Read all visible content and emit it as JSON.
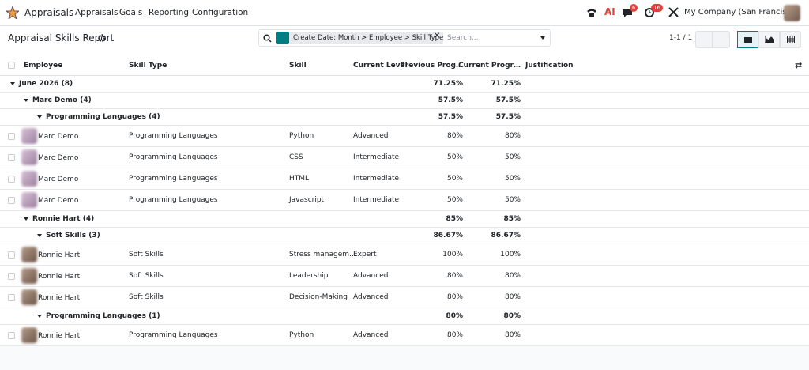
{
  "navbar": {
    "app": "Appraisals",
    "menu": [
      "Appraisals",
      "Goals",
      "Reporting",
      "Configuration"
    ],
    "badges": [
      "6",
      "16"
    ],
    "company": "My Company (San Francisco)"
  },
  "control_panel": {
    "title": "Appraisal Skills Report",
    "facet": "Create Date: Month > Employee > Skill Type",
    "search_placeholder": "Search...",
    "pager": "1-1 / 1"
  },
  "table": {
    "columns": [
      "Employee",
      "Skill Type",
      "Skill",
      "Current Level",
      "Previous Prog…",
      "Current Progr…",
      "Justification"
    ],
    "groups": [
      {
        "label": "June 2026 (8)",
        "previous": "71.25%",
        "current": "71.25%",
        "groups": [
          {
            "label": "Marc Demo (4)",
            "previous": "57.5%",
            "current": "57.5%",
            "groups": [
              {
                "label": "Programming Languages (4)",
                "previous": "57.5%",
                "current": "57.5%",
                "records": [
                  {
                    "employee": "Marc Demo",
                    "skill_type": "Programming Languages",
                    "skill": "Python",
                    "level": "Advanced",
                    "previous": "80%",
                    "current": "80%"
                  },
                  {
                    "employee": "Marc Demo",
                    "skill_type": "Programming Languages",
                    "skill": "CSS",
                    "level": "Intermediate",
                    "previous": "50%",
                    "current": "50%"
                  },
                  {
                    "employee": "Marc Demo",
                    "skill_type": "Programming Languages",
                    "skill": "HTML",
                    "level": "Intermediate",
                    "previous": "50%",
                    "current": "50%"
                  },
                  {
                    "employee": "Marc Demo",
                    "skill_type": "Programming Languages",
                    "skill": "Javascript",
                    "level": "Intermediate",
                    "previous": "50%",
                    "current": "50%"
                  }
                ]
              }
            ]
          },
          {
            "label": "Ronnie Hart (4)",
            "previous": "85%",
            "current": "85%",
            "groups": [
              {
                "label": "Soft Skills (3)",
                "previous": "86.67%",
                "current": "86.67%",
                "records": [
                  {
                    "employee": "Ronnie Hart",
                    "skill_type": "Soft Skills",
                    "skill": "Stress managem…",
                    "level": "Expert",
                    "previous": "100%",
                    "current": "100%"
                  },
                  {
                    "employee": "Ronnie Hart",
                    "skill_type": "Soft Skills",
                    "skill": "Leadership",
                    "level": "Advanced",
                    "previous": "80%",
                    "current": "80%"
                  },
                  {
                    "employee": "Ronnie Hart",
                    "skill_type": "Soft Skills",
                    "skill": "Decision-Making",
                    "level": "Advanced",
                    "previous": "80%",
                    "current": "80%"
                  }
                ]
              },
              {
                "label": "Programming Languages (1)",
                "previous": "80%",
                "current": "80%",
                "records": [
                  {
                    "employee": "Ronnie Hart",
                    "skill_type": "Programming Languages",
                    "skill": "Python",
                    "level": "Advanced",
                    "previous": "80%",
                    "current": "80%"
                  }
                ]
              }
            ]
          }
        ]
      }
    ]
  }
}
